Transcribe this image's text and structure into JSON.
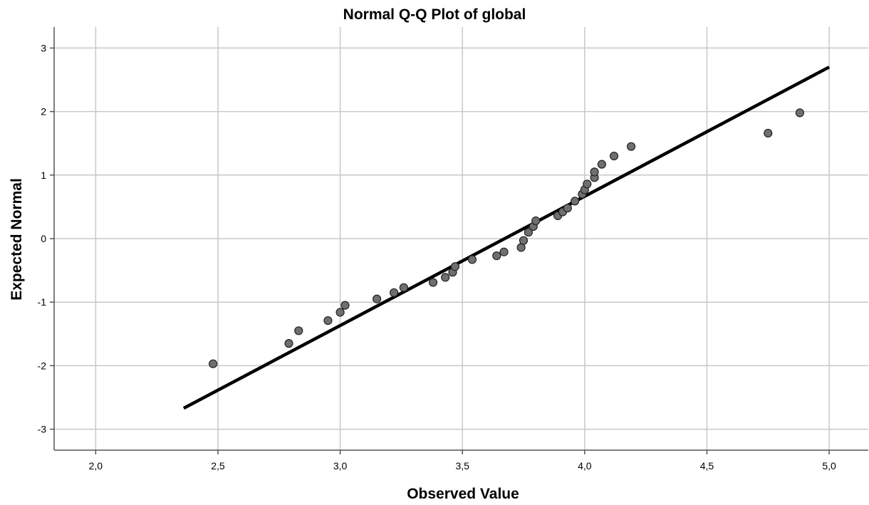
{
  "chart_data": {
    "type": "scatter",
    "title": "Normal Q-Q Plot of global",
    "xlabel": "Observed Value",
    "ylabel": "Expected Normal",
    "xlim": [
      1.83,
      5.16
    ],
    "ylim": [
      -3.33,
      3.33
    ],
    "xticks": [
      2.0,
      2.5,
      3.0,
      3.5,
      4.0,
      4.5,
      5.0
    ],
    "xtick_labels": [
      "2,0",
      "2,5",
      "3,0",
      "3,5",
      "4,0",
      "4,5",
      "5,0"
    ],
    "yticks": [
      3,
      2,
      1,
      0,
      -1,
      -2,
      -3
    ],
    "ytick_labels": [
      "3",
      "2",
      "1",
      "0",
      "-1",
      "-2",
      "-3"
    ],
    "grid": true,
    "legend": "none",
    "point_color": "#6f6f6f",
    "line_color": "#000000",
    "reference_line": {
      "x": [
        2.36,
        5.0
      ],
      "y": [
        -2.67,
        2.7
      ]
    },
    "points": [
      {
        "x": 2.48,
        "y": -1.97
      },
      {
        "x": 2.79,
        "y": -1.65
      },
      {
        "x": 2.83,
        "y": -1.45
      },
      {
        "x": 2.95,
        "y": -1.29
      },
      {
        "x": 3.0,
        "y": -1.16
      },
      {
        "x": 3.02,
        "y": -1.05
      },
      {
        "x": 3.15,
        "y": -0.95
      },
      {
        "x": 3.22,
        "y": -0.85
      },
      {
        "x": 3.26,
        "y": -0.77
      },
      {
        "x": 3.38,
        "y": -0.69
      },
      {
        "x": 3.43,
        "y": -0.61
      },
      {
        "x": 3.46,
        "y": -0.53
      },
      {
        "x": 3.47,
        "y": -0.44
      },
      {
        "x": 3.54,
        "y": -0.33
      },
      {
        "x": 3.64,
        "y": -0.27
      },
      {
        "x": 3.67,
        "y": -0.21
      },
      {
        "x": 3.74,
        "y": -0.14
      },
      {
        "x": 3.75,
        "y": -0.03
      },
      {
        "x": 3.77,
        "y": 0.1
      },
      {
        "x": 3.79,
        "y": 0.19
      },
      {
        "x": 3.8,
        "y": 0.28
      },
      {
        "x": 3.89,
        "y": 0.36
      },
      {
        "x": 3.91,
        "y": 0.42
      },
      {
        "x": 3.93,
        "y": 0.48
      },
      {
        "x": 3.96,
        "y": 0.59
      },
      {
        "x": 3.99,
        "y": 0.7
      },
      {
        "x": 4.0,
        "y": 0.77
      },
      {
        "x": 4.01,
        "y": 0.86
      },
      {
        "x": 4.04,
        "y": 0.96
      },
      {
        "x": 4.04,
        "y": 1.05
      },
      {
        "x": 4.07,
        "y": 1.17
      },
      {
        "x": 4.12,
        "y": 1.3
      },
      {
        "x": 4.19,
        "y": 1.45
      },
      {
        "x": 4.75,
        "y": 1.66
      },
      {
        "x": 4.88,
        "y": 1.98
      }
    ]
  }
}
